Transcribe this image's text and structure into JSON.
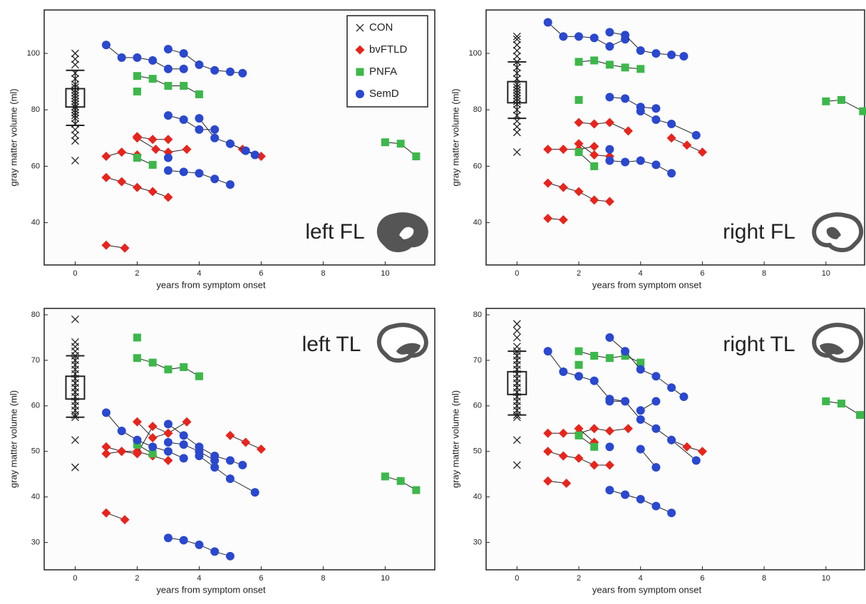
{
  "chart_data": [
    {
      "type": "scatter",
      "title": "left FL",
      "xlabel": "years from symptom onset",
      "ylabel": "gray matter volume (ml)",
      "xlim": [
        -1,
        11.6
      ],
      "ylim": [
        25,
        115.4
      ],
      "xticks": [
        0,
        2,
        4,
        6,
        8,
        10
      ],
      "yticks": [
        40,
        60,
        80,
        100
      ],
      "legend_position": "upper right",
      "legend": [
        {
          "name": "CON",
          "color": "#222222",
          "marker": "x"
        },
        {
          "name": "bvFTLD",
          "color": "#e8241c",
          "marker": "diamond"
        },
        {
          "name": "PNFA",
          "color": "#3cb84a",
          "marker": "square"
        },
        {
          "name": "SemD",
          "color": "#2a48d0",
          "marker": "circle"
        }
      ],
      "controls": {
        "x": 0,
        "values": [
          100,
          98,
          96,
          93,
          91,
          89,
          88,
          87,
          86,
          85,
          84,
          83,
          82,
          81,
          80,
          79,
          78,
          77,
          75,
          73,
          71,
          69,
          62
        ],
        "box_low": 81,
        "box_high": 87.5,
        "whisker_low": 74.5,
        "whisker_high": 94
      },
      "groups": [
        [
          {
            "x": [
              1,
              1.5,
              2
            ],
            "y": [
              63.5,
              65,
              64
            ]
          },
          {
            "x": [
              2,
              2.5,
              3
            ],
            "y": [
              70.5,
              69.5,
              69.5
            ]
          },
          {
            "x": [
              2,
              2.6,
              3,
              3.6
            ],
            "y": [
              70,
              66,
              65,
              66
            ]
          },
          {
            "x": [
              1,
              1.5,
              2,
              2.5,
              3
            ],
            "y": [
              56,
              54.5,
              52.5,
              51,
              49
            ]
          },
          {
            "x": [
              1,
              1.6
            ],
            "y": [
              32,
              31
            ]
          },
          {
            "x": [
              5,
              5.4,
              6
            ],
            "y": [
              68,
              66,
              63.5
            ]
          }
        ],
        [
          {
            "x": [
              2,
              2.5,
              3,
              3.5,
              4
            ],
            "y": [
              92,
              91,
              88.5,
              88.5,
              85.5
            ]
          },
          {
            "x": [
              2
            ],
            "y": [
              86.5
            ]
          },
          {
            "x": [
              2,
              2.5
            ],
            "y": [
              63,
              60.5
            ]
          },
          {
            "x": [
              10,
              10.5,
              11
            ],
            "y": [
              68.5,
              68,
              63.5
            ]
          }
        ],
        [
          {
            "x": [
              1,
              1.5,
              2,
              2.5,
              3,
              3.5
            ],
            "y": [
              103,
              98.5,
              98.5,
              97.5,
              94.5,
              94.5
            ]
          },
          {
            "x": [
              3,
              3.5,
              4,
              4.5,
              5,
              5.4
            ],
            "y": [
              101.5,
              100,
              96,
              94,
              93.5,
              93
            ]
          },
          {
            "x": [
              3,
              3.5,
              4,
              4.5
            ],
            "y": [
              78,
              76.5,
              73,
              73
            ]
          },
          {
            "x": [
              4,
              4.5,
              5,
              5.5,
              5.8
            ],
            "y": [
              77,
              70,
              68,
              65.5,
              64
            ]
          },
          {
            "x": [
              3
            ],
            "y": [
              63
            ]
          },
          {
            "x": [
              3,
              3.5,
              4,
              4.5,
              5
            ],
            "y": [
              58.5,
              58,
              57.5,
              55.5,
              53.5
            ]
          }
        ]
      ]
    },
    {
      "type": "scatter",
      "title": "right FL",
      "xlabel": "years from symptom onset",
      "ylabel": "gray matter volume (ml)",
      "xlim": [
        -1,
        11.25
      ],
      "ylim": [
        25,
        115.4
      ],
      "xticks": [
        0,
        2,
        4,
        6,
        8,
        10
      ],
      "yticks": [
        40,
        60,
        80,
        100
      ],
      "controls": {
        "x": 0,
        "values": [
          106,
          105,
          103,
          101,
          99,
          97,
          95,
          93,
          91,
          89,
          88,
          87,
          86,
          85,
          84,
          83,
          82,
          80,
          78,
          76,
          74,
          72,
          65
        ],
        "box_low": 82.5,
        "box_high": 90,
        "whisker_low": 77,
        "whisker_high": 97
      },
      "groups": [
        [
          {
            "x": [
              1,
              1.5,
              2,
              2.5
            ],
            "y": [
              66,
              66,
              66,
              67
            ]
          },
          {
            "x": [
              2,
              2.5,
              3,
              3.6
            ],
            "y": [
              75.5,
              75,
              75.5,
              72.5
            ]
          },
          {
            "x": [
              2,
              2.5,
              3
            ],
            "y": [
              68,
              64,
              63.5
            ]
          },
          {
            "x": [
              1,
              1.5,
              2,
              2.5,
              3
            ],
            "y": [
              54,
              52.5,
              51,
              48,
              47.5
            ]
          },
          {
            "x": [
              1,
              1.5
            ],
            "y": [
              41.5,
              41
            ]
          },
          {
            "x": [
              5,
              5.5,
              6
            ],
            "y": [
              70,
              67.5,
              65
            ]
          }
        ],
        [
          {
            "x": [
              2,
              2.5,
              3,
              3.5,
              4
            ],
            "y": [
              97,
              97.5,
              96,
              95,
              94.5
            ]
          },
          {
            "x": [
              2
            ],
            "y": [
              83.5
            ]
          },
          {
            "x": [
              2,
              2.5
            ],
            "y": [
              65,
              60
            ]
          },
          {
            "x": [
              10,
              10.5,
              11.2
            ],
            "y": [
              83,
              83.5,
              79.5
            ]
          }
        ],
        [
          {
            "x": [
              1,
              1.5,
              2,
              2.5,
              3,
              3.5
            ],
            "y": [
              111,
              106,
              106,
              105.5,
              102.5,
              105
            ]
          },
          {
            "x": [
              3,
              3.5,
              4,
              4.5,
              5,
              5.4
            ],
            "y": [
              107.5,
              106.5,
              101,
              100,
              99.5,
              99
            ]
          },
          {
            "x": [
              3,
              3.5,
              4,
              4.5
            ],
            "y": [
              84.5,
              84,
              81,
              80.5
            ]
          },
          {
            "x": [
              4,
              4.5,
              5,
              5.8
            ],
            "y": [
              79.5,
              76.5,
              75,
              71
            ]
          },
          {
            "x": [
              3
            ],
            "y": [
              66
            ]
          },
          {
            "x": [
              3,
              3.5,
              4,
              4.5,
              5
            ],
            "y": [
              62,
              61.5,
              62,
              60.5,
              57.5
            ]
          }
        ]
      ]
    },
    {
      "type": "scatter",
      "title": "left TL",
      "xlabel": "years from symptom onset",
      "ylabel": "gray matter volume (ml)",
      "xlim": [
        -1,
        11.6
      ],
      "ylim": [
        24,
        81.4
      ],
      "xticks": [
        0,
        2,
        4,
        6,
        8,
        10
      ],
      "yticks": [
        30,
        40,
        50,
        60,
        70,
        80
      ],
      "controls": {
        "x": 0,
        "values": [
          79,
          74,
          73,
          72,
          71,
          70,
          69,
          68,
          67,
          66,
          65,
          64,
          63,
          62,
          61,
          60,
          59,
          58,
          57.5,
          52.5,
          46.5
        ],
        "box_low": 61.5,
        "box_high": 66.5,
        "whisker_low": 57.5,
        "whisker_high": 71
      },
      "groups": [
        [
          {
            "x": [
              1,
              1.5,
              2,
              2.5,
              3
            ],
            "y": [
              51,
              50,
              50,
              49,
              48
            ]
          },
          {
            "x": [
              1,
              1.5,
              2,
              2.5,
              3
            ],
            "y": [
              49.5,
              50,
              49.5,
              55.5,
              54
            ]
          },
          {
            "x": [
              2,
              2.5,
              3,
              3.6
            ],
            "y": [
              56.5,
              53,
              54,
              56.5
            ]
          },
          {
            "x": [
              1,
              1.6
            ],
            "y": [
              36.5,
              35
            ]
          },
          {
            "x": [
              5,
              5.5,
              6
            ],
            "y": [
              53.5,
              52,
              50.5
            ]
          }
        ],
        [
          {
            "x": [
              2
            ],
            "y": [
              75
            ]
          },
          {
            "x": [
              2,
              2.5,
              3,
              3.5,
              4
            ],
            "y": [
              70.5,
              69.5,
              68,
              68.5,
              66.5
            ]
          },
          {
            "x": [
              2,
              2.5
            ],
            "y": [
              51.5,
              49.5
            ]
          },
          {
            "x": [
              10,
              10.5,
              11
            ],
            "y": [
              44.5,
              43.5,
              41.5
            ]
          }
        ],
        [
          {
            "x": [
              1,
              1.5,
              2,
              2.5,
              3,
              3.5
            ],
            "y": [
              58.5,
              54.5,
              52.5,
              51,
              50,
              48.5
            ]
          },
          {
            "x": [
              3,
              3.5,
              4,
              4.5,
              5,
              5.4
            ],
            "y": [
              56,
              53.5,
              51,
              49,
              48,
              47
            ]
          },
          {
            "x": [
              3,
              3.5,
              4,
              4.5
            ],
            "y": [
              52,
              51.5,
              50,
              48
            ]
          },
          {
            "x": [
              4,
              4.5,
              5,
              5.8
            ],
            "y": [
              49,
              46.5,
              44,
              41
            ]
          },
          {
            "x": [
              3,
              3.5,
              4,
              4.5,
              5
            ],
            "y": [
              31,
              30.5,
              29.5,
              28,
              27
            ]
          }
        ]
      ]
    },
    {
      "type": "scatter",
      "title": "right TL",
      "xlabel": "years from symptom onset",
      "ylabel": "gray matter volume (ml)",
      "xlim": [
        -1,
        11.25
      ],
      "ylim": [
        24,
        81.4
      ],
      "xticks": [
        0,
        2,
        4,
        6,
        8,
        10
      ],
      "yticks": [
        30,
        40,
        50,
        60,
        70,
        80
      ],
      "controls": {
        "x": 0,
        "values": [
          78,
          76.5,
          75,
          73,
          72,
          71,
          70,
          69,
          68,
          67,
          66,
          65,
          64,
          63,
          62,
          61,
          60,
          59,
          58,
          57.5,
          52.5,
          47
        ],
        "box_low": 62.5,
        "box_high": 67.5,
        "whisker_low": 58,
        "whisker_high": 72
      },
      "groups": [
        [
          {
            "x": [
              1,
              1.5,
              2,
              2.5,
              3,
              3.6
            ],
            "y": [
              54,
              54,
              54,
              55,
              54.5,
              55
            ]
          },
          {
            "x": [
              1,
              1.5,
              2,
              2.5,
              3
            ],
            "y": [
              50,
              49,
              48.5,
              47,
              47
            ]
          },
          {
            "x": [
              1,
              1.6
            ],
            "y": [
              43.5,
              43
            ]
          },
          {
            "x": [
              2,
              2.5
            ],
            "y": [
              55,
              52
            ]
          },
          {
            "x": [
              5,
              5.5,
              6
            ],
            "y": [
              52.5,
              51,
              50
            ]
          }
        ],
        [
          {
            "x": [
              2,
              2.5,
              3,
              3.5,
              4
            ],
            "y": [
              72,
              71,
              70.5,
              71,
              69.5
            ]
          },
          {
            "x": [
              2
            ],
            "y": [
              69
            ]
          },
          {
            "x": [
              2,
              2.5
            ],
            "y": [
              53.5,
              51
            ]
          },
          {
            "x": [
              10,
              10.5,
              11.1
            ],
            "y": [
              61,
              60.5,
              58
            ]
          }
        ],
        [
          {
            "x": [
              1,
              1.5,
              2,
              2.5,
              3,
              3.5
            ],
            "y": [
              72,
              67.5,
              66.5,
              65.5,
              61.5,
              61
            ]
          },
          {
            "x": [
              3,
              3.5,
              4,
              4.5,
              5,
              5.4
            ],
            "y": [
              75,
              72,
              68,
              66.5,
              64,
              62
            ]
          },
          {
            "x": [
              3,
              3.5,
              4,
              4.5,
              5,
              5.8
            ],
            "y": [
              61,
              61,
              57,
              55,
              52.5,
              48
            ]
          },
          {
            "x": [
              4,
              4.5
            ],
            "y": [
              59,
              61
            ]
          },
          {
            "x": [
              3
            ],
            "y": [
              51
            ]
          },
          {
            "x": [
              4,
              4.5
            ],
            "y": [
              50.5,
              46.5
            ]
          },
          {
            "x": [
              3,
              3.5,
              4,
              4.5,
              5
            ],
            "y": [
              41.5,
              40.5,
              39.5,
              38,
              36.5
            ]
          }
        ]
      ]
    }
  ]
}
